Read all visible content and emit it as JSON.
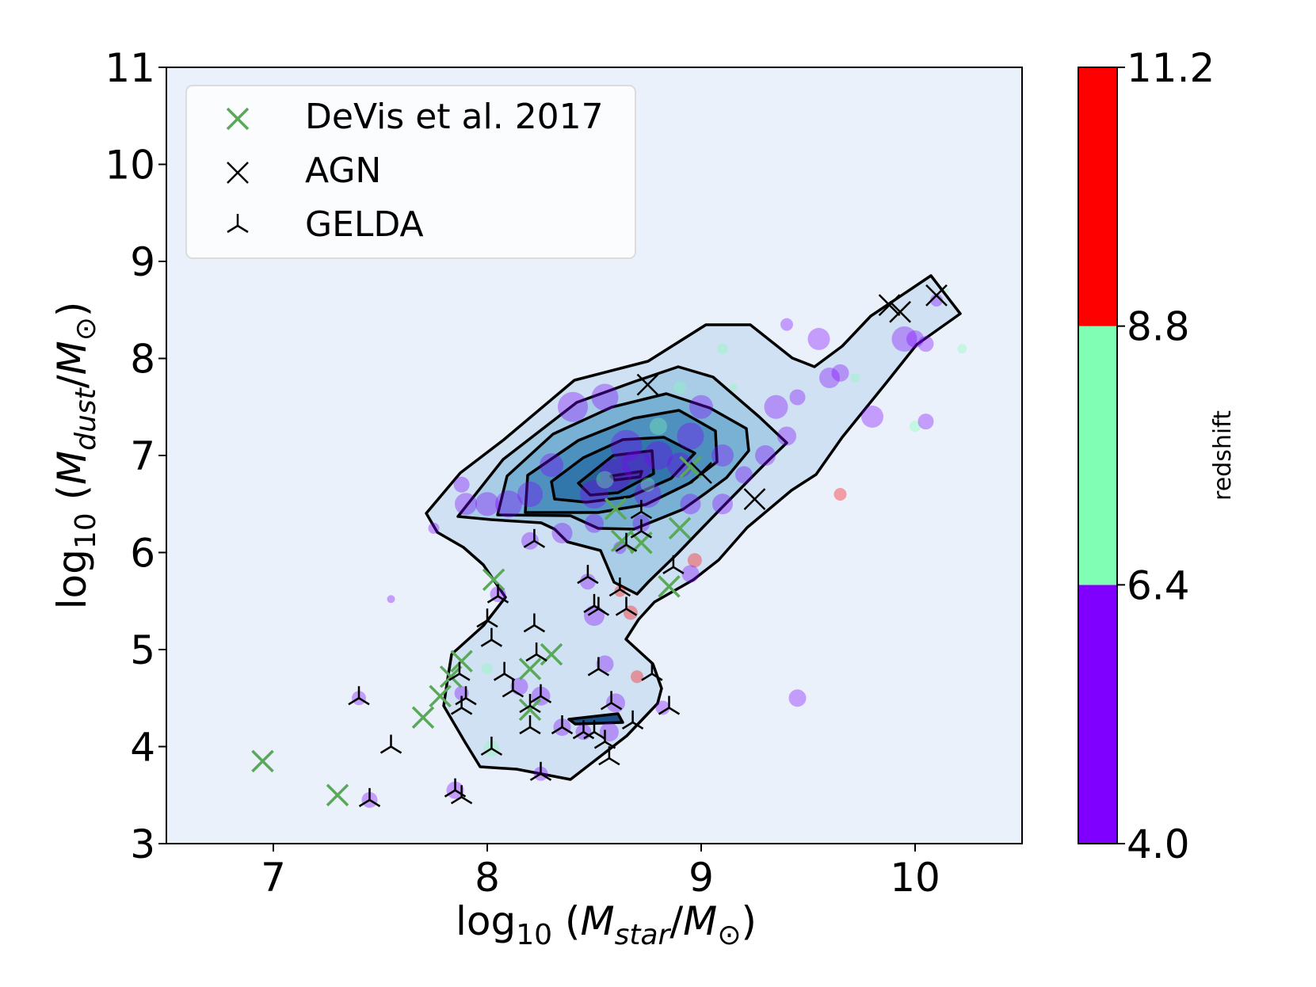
{
  "chart_data": {
    "type": "scatter",
    "xlabel": "log10 (Mstar/M⊙)",
    "ylabel": "log10 (Mdust/M⊙)",
    "xlim": [
      6.5,
      10.5
    ],
    "ylim": [
      3,
      11
    ],
    "xticks": [
      "7",
      "8",
      "9",
      "10"
    ],
    "yticks": [
      "3",
      "4",
      "5",
      "6",
      "7",
      "8",
      "9",
      "10",
      "11"
    ],
    "background_color": "#eaf1fb",
    "legend": {
      "placement": "top-left",
      "entries": [
        {
          "label": "DeVis et al. 2017",
          "marker": "x-marker",
          "color": "#5aa85a"
        },
        {
          "label": "AGN",
          "marker": "x-marker",
          "color": "#000000"
        },
        {
          "label": "GELDA",
          "marker": "tri-down-marker",
          "color": "#000000"
        }
      ]
    },
    "colorbar": {
      "label": "redshift",
      "ticks": [
        "4.0",
        "6.4",
        "8.8",
        "11.2"
      ],
      "bands": [
        {
          "from": 4.0,
          "to": 6.4,
          "color": "#7f00ff"
        },
        {
          "from": 6.4,
          "to": 8.8,
          "color": "#80ffb4"
        },
        {
          "from": 8.8,
          "to": 11.2,
          "color": "#ff0000"
        }
      ]
    },
    "series": [
      {
        "name": "DeVis et al. 2017",
        "marker": "x",
        "color": "#5aa85a",
        "points": [
          [
            6.95,
            3.85
          ],
          [
            7.3,
            3.5
          ],
          [
            7.7,
            4.3
          ],
          [
            7.78,
            4.52
          ],
          [
            7.88,
            4.88
          ],
          [
            8.03,
            5.72
          ],
          [
            8.2,
            4.38
          ],
          [
            8.2,
            4.8
          ],
          [
            8.3,
            4.95
          ],
          [
            8.6,
            6.45
          ],
          [
            8.72,
            6.1
          ],
          [
            8.9,
            6.25
          ],
          [
            8.85,
            5.65
          ],
          [
            8.95,
            6.88
          ],
          [
            8.63,
            6.12
          ],
          [
            7.83,
            4.72
          ]
        ]
      },
      {
        "name": "AGN",
        "marker": "x",
        "color": "#000000",
        "points": [
          [
            8.75,
            7.73
          ],
          [
            9.0,
            6.82
          ],
          [
            9.25,
            6.55
          ],
          [
            9.88,
            8.55
          ],
          [
            9.93,
            8.48
          ],
          [
            10.1,
            8.65
          ]
        ]
      },
      {
        "name": "GELDA",
        "marker": "tri",
        "color": "#000000",
        "points": [
          [
            7.4,
            4.5
          ],
          [
            7.55,
            4.0
          ],
          [
            7.45,
            3.45
          ],
          [
            7.85,
            3.55
          ],
          [
            7.88,
            3.48
          ],
          [
            7.87,
            4.75
          ],
          [
            7.9,
            4.5
          ],
          [
            7.88,
            4.4
          ],
          [
            8.0,
            5.3
          ],
          [
            8.02,
            5.1
          ],
          [
            8.02,
            3.98
          ],
          [
            8.08,
            4.75
          ],
          [
            8.12,
            4.58
          ],
          [
            8.2,
            4.42
          ],
          [
            8.22,
            5.25
          ],
          [
            8.23,
            4.95
          ],
          [
            8.25,
            4.52
          ],
          [
            8.2,
            4.2
          ],
          [
            8.22,
            6.12
          ],
          [
            8.25,
            3.72
          ],
          [
            8.35,
            4.2
          ],
          [
            8.45,
            4.15
          ],
          [
            8.47,
            5.75
          ],
          [
            8.5,
            4.15
          ],
          [
            8.5,
            5.45
          ],
          [
            8.52,
            5.42
          ],
          [
            8.52,
            4.8
          ],
          [
            8.55,
            4.05
          ],
          [
            8.58,
            4.45
          ],
          [
            8.57,
            3.88
          ],
          [
            8.65,
            6.08
          ],
          [
            8.65,
            5.42
          ],
          [
            8.68,
            4.25
          ],
          [
            8.72,
            6.22
          ],
          [
            8.77,
            4.75
          ],
          [
            8.85,
            4.4
          ],
          [
            8.87,
            5.85
          ],
          [
            8.72,
            6.42
          ],
          [
            8.62,
            5.62
          ],
          [
            8.05,
            5.55
          ]
        ]
      },
      {
        "name": "",
        "marker": "circle",
        "points": [
          [
            8.4,
            7.5,
            4.9,
            38
          ],
          [
            8.55,
            7.6,
            4.5,
            34
          ],
          [
            8.65,
            7.1,
            4.4,
            40
          ],
          [
            8.7,
            6.9,
            5.0,
            38
          ],
          [
            8.8,
            7.0,
            4.6,
            36
          ],
          [
            8.6,
            6.8,
            4.3,
            40
          ],
          [
            8.5,
            6.6,
            4.8,
            36
          ],
          [
            8.75,
            6.6,
            5.1,
            34
          ],
          [
            8.9,
            6.9,
            4.7,
            32
          ],
          [
            8.95,
            7.2,
            4.2,
            34
          ],
          [
            9.0,
            7.5,
            4.9,
            30
          ],
          [
            9.1,
            7.0,
            5.2,
            28
          ],
          [
            8.3,
            6.9,
            4.5,
            30
          ],
          [
            8.2,
            6.6,
            5.3,
            32
          ],
          [
            8.1,
            6.5,
            4.4,
            34
          ],
          [
            8.0,
            6.5,
            4.7,
            30
          ],
          [
            7.9,
            6.5,
            5.0,
            28
          ],
          [
            7.88,
            6.7,
            4.6,
            20
          ],
          [
            8.35,
            6.2,
            4.8,
            26
          ],
          [
            8.5,
            6.3,
            5.1,
            24
          ],
          [
            8.72,
            6.3,
            4.5,
            22
          ],
          [
            8.95,
            6.5,
            4.9,
            26
          ],
          [
            9.1,
            6.5,
            4.4,
            26
          ],
          [
            9.2,
            6.8,
            5.6,
            22
          ],
          [
            9.3,
            7.0,
            4.3,
            26
          ],
          [
            9.35,
            7.5,
            4.6,
            30
          ],
          [
            9.4,
            7.2,
            5.0,
            24
          ],
          [
            9.45,
            7.6,
            4.8,
            20
          ],
          [
            9.6,
            7.8,
            4.9,
            26
          ],
          [
            9.65,
            7.85,
            4.5,
            22
          ],
          [
            9.8,
            7.4,
            4.4,
            28
          ],
          [
            9.95,
            8.2,
            4.2,
            32
          ],
          [
            10.0,
            8.2,
            4.5,
            22
          ],
          [
            10.05,
            8.15,
            4.8,
            20
          ],
          [
            9.55,
            8.2,
            4.3,
            28
          ],
          [
            9.4,
            8.35,
            4.7,
            16
          ],
          [
            9.1,
            8.1,
            6.8,
            14
          ],
          [
            10.15,
            8.7,
            7.5,
            6
          ],
          [
            10.22,
            8.1,
            7.0,
            12
          ],
          [
            10.0,
            7.3,
            7.2,
            14
          ],
          [
            10.05,
            7.35,
            4.6,
            20
          ],
          [
            9.72,
            7.8,
            7.0,
            12
          ],
          [
            9.65,
            6.6,
            10.0,
            16
          ],
          [
            9.45,
            4.5,
            4.5,
            22
          ],
          [
            7.55,
            5.52,
            4.4,
            10
          ],
          [
            7.75,
            6.25,
            4.7,
            14
          ],
          [
            8.05,
            5.57,
            4.6,
            20
          ],
          [
            8.15,
            4.62,
            4.7,
            22
          ],
          [
            8.25,
            4.52,
            4.9,
            24
          ],
          [
            8.35,
            4.2,
            4.4,
            22
          ],
          [
            8.45,
            4.15,
            4.6,
            20
          ],
          [
            8.55,
            4.85,
            4.5,
            22
          ],
          [
            8.57,
            4.15,
            4.3,
            24
          ],
          [
            8.6,
            4.45,
            4.8,
            24
          ],
          [
            8.5,
            5.35,
            4.9,
            26
          ],
          [
            8.2,
            6.12,
            4.7,
            22
          ],
          [
            7.88,
            4.55,
            4.7,
            18
          ],
          [
            8.02,
            3.98,
            7.0,
            20
          ],
          [
            7.85,
            3.55,
            4.5,
            22
          ],
          [
            7.45,
            3.45,
            4.6,
            20
          ],
          [
            7.4,
            4.5,
            4.4,
            18
          ],
          [
            8.25,
            3.72,
            4.6,
            18
          ],
          [
            8.62,
            5.6,
            10.5,
            14
          ],
          [
            8.7,
            4.72,
            10.0,
            16
          ],
          [
            8.67,
            5.38,
            10.0,
            18
          ],
          [
            8.97,
            5.92,
            10.2,
            18
          ],
          [
            8.95,
            5.78,
            4.6,
            22
          ],
          [
            8.82,
            4.4,
            4.8,
            18
          ],
          [
            8.62,
            6.05,
            4.5,
            16
          ],
          [
            8.0,
            4.8,
            7.0,
            14
          ],
          [
            8.47,
            5.7,
            4.6,
            20
          ],
          [
            8.8,
            7.3,
            7.0,
            22
          ],
          [
            8.9,
            7.7,
            7.5,
            16
          ],
          [
            8.55,
            6.75,
            7.2,
            22
          ],
          [
            8.75,
            6.7,
            6.8,
            18
          ],
          [
            9.15,
            7.7,
            7.0,
            10
          ],
          [
            10.1,
            8.6,
            4.8,
            16
          ]
        ]
      }
    ]
  }
}
